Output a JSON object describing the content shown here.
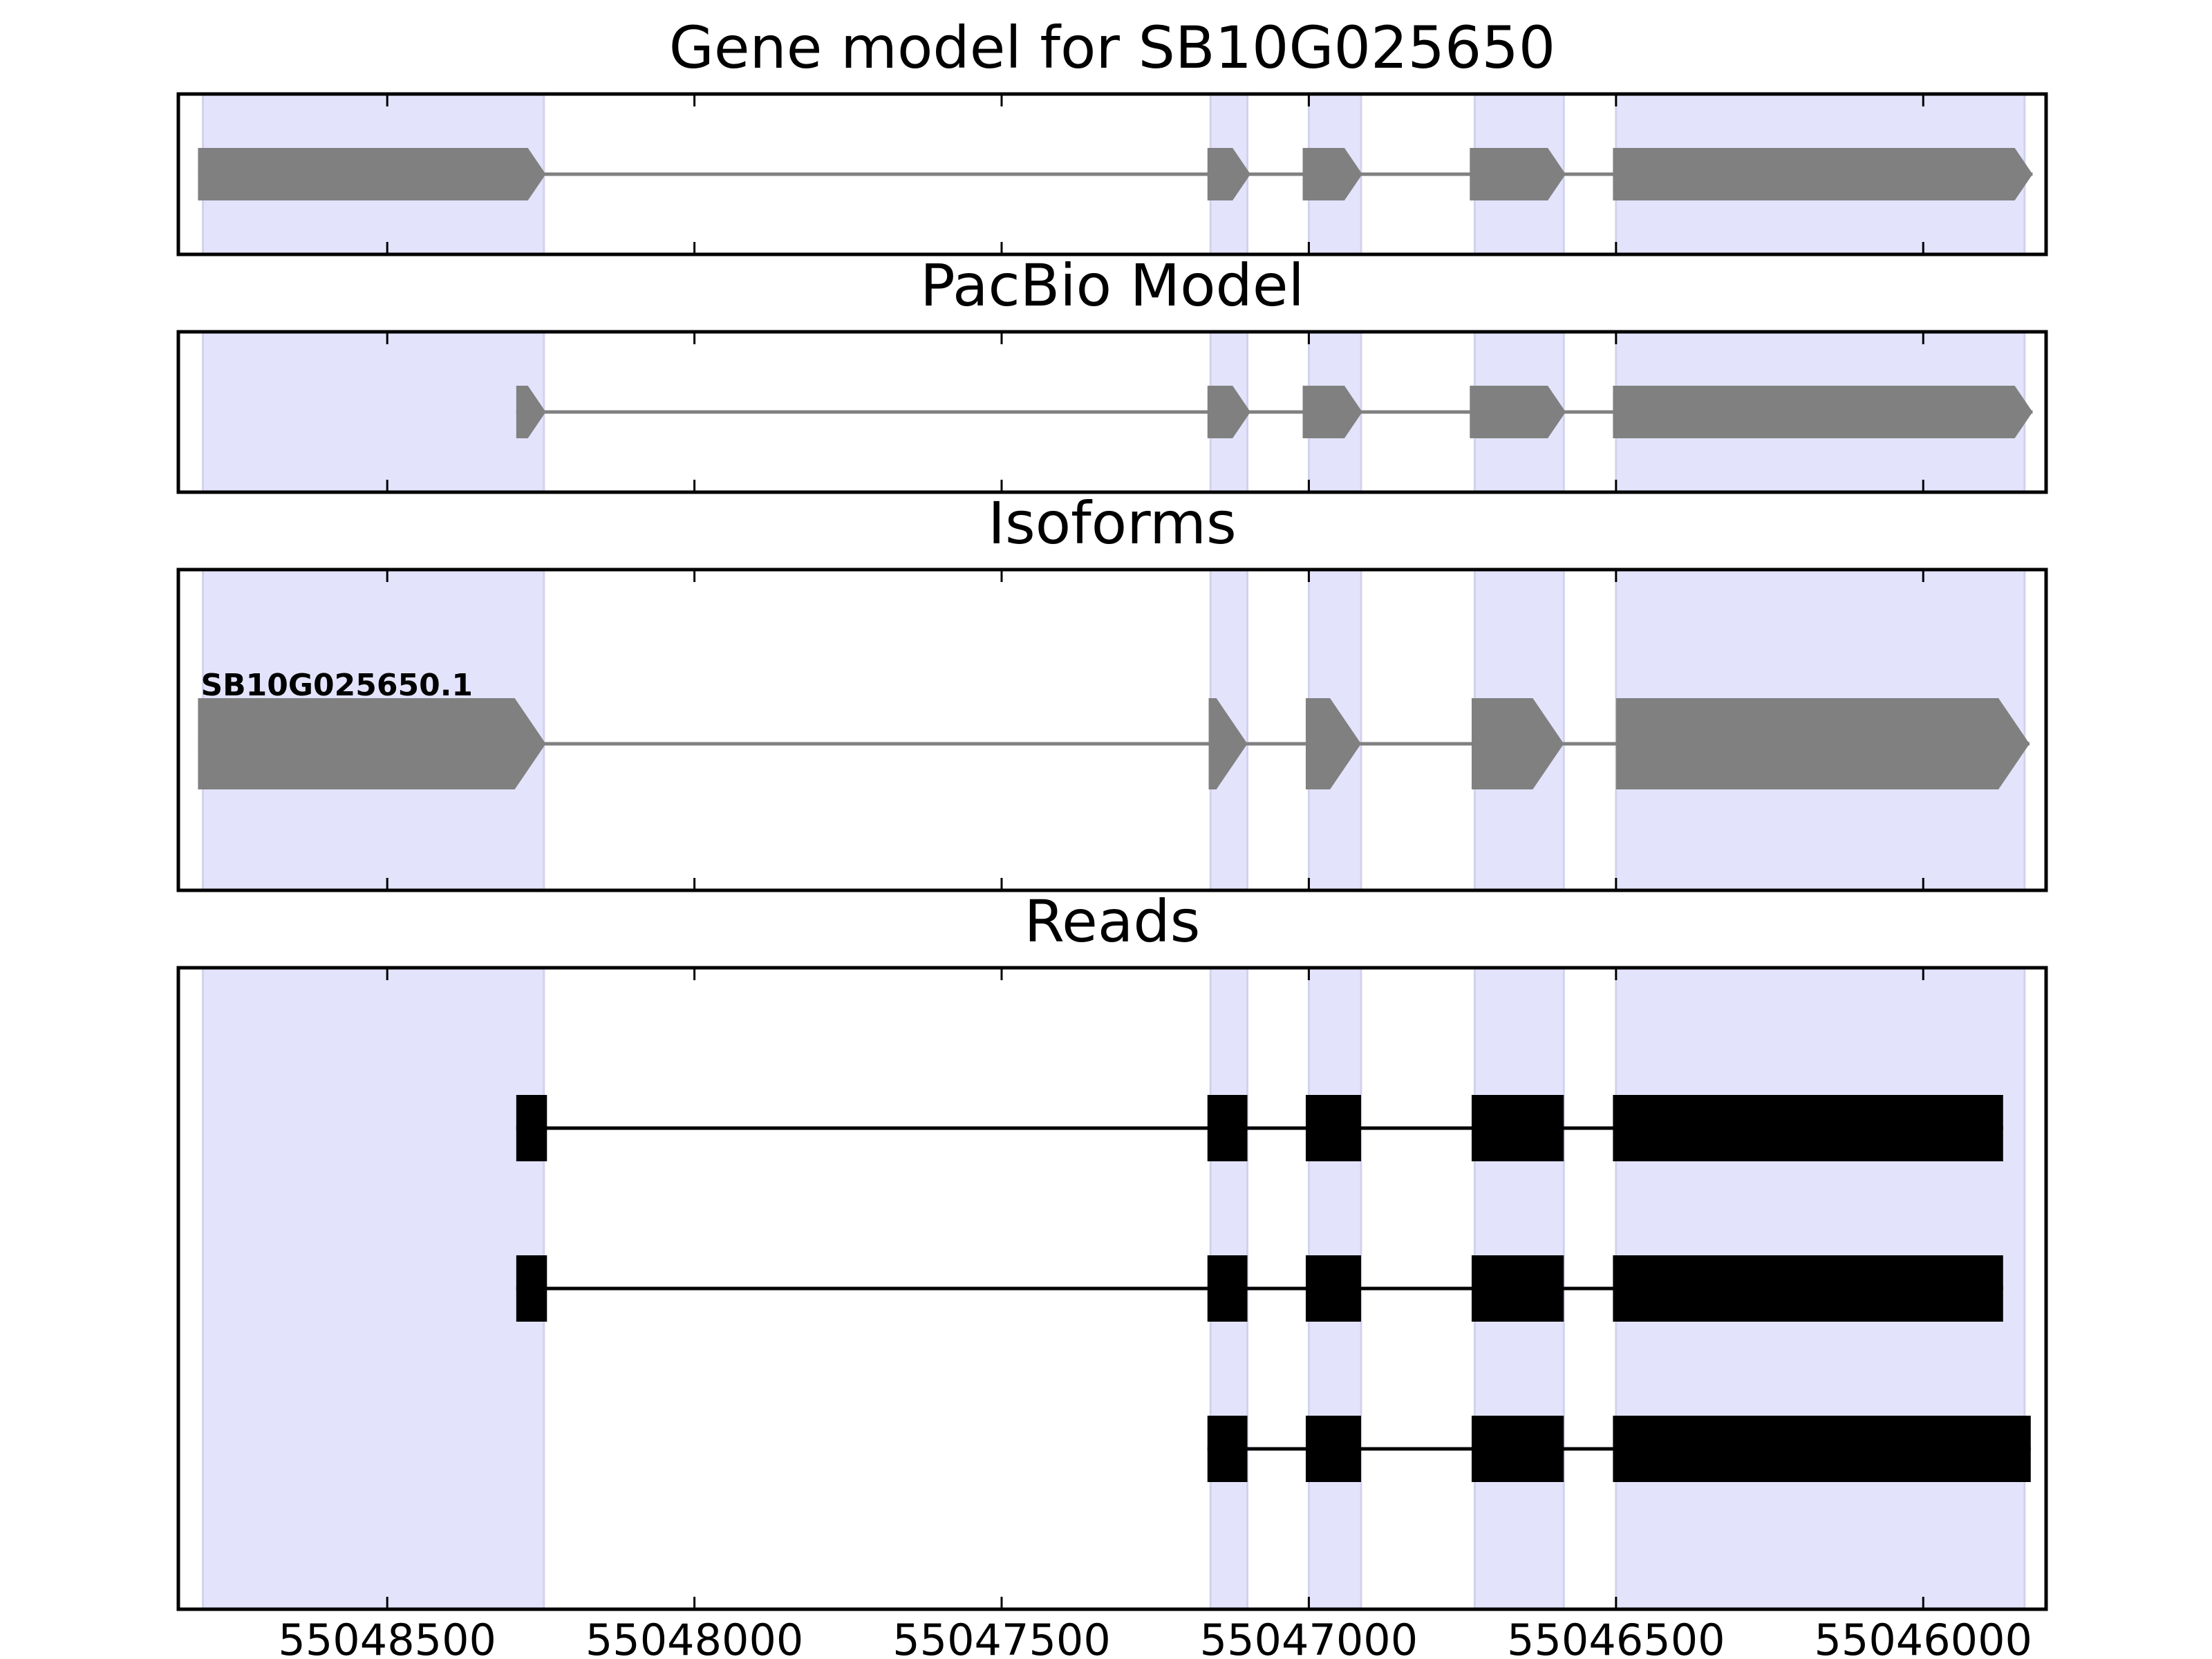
{
  "chart_data": {
    "type": "gene-model",
    "x_axis": {
      "reversed": true,
      "range": [
        55048840,
        55045800
      ],
      "ticks": [
        55048500,
        55048000,
        55047500,
        55047000,
        55046500,
        55046000
      ],
      "tick_labels": [
        "55048500",
        "55048000",
        "55047500",
        "55047000",
        "55046500",
        "55046000"
      ]
    },
    "highlight_regions": [
      [
        55048800,
        55048245
      ],
      [
        55047160,
        55047100
      ],
      [
        55047000,
        55046915
      ],
      [
        55046730,
        55046585
      ],
      [
        55046500,
        55045835
      ]
    ],
    "panels": [
      {
        "id": "gene",
        "title": "Gene model for SB10G025650",
        "color": "#808080",
        "tracks": [
          {
            "label": "",
            "exons": [
              [
                55048808,
                55048242
              ],
              [
                55047165,
                55047095
              ],
              [
                55047010,
                55046913
              ],
              [
                55046738,
                55046582
              ],
              [
                55046505,
                55045822
              ]
            ]
          }
        ]
      },
      {
        "id": "pacbio",
        "title": "PacBio Model",
        "color": "#808080",
        "tracks": [
          {
            "label": "",
            "exons": [
              [
                55048290,
                55048242
              ],
              [
                55047165,
                55047095
              ],
              [
                55047010,
                55046913
              ],
              [
                55046738,
                55046582
              ],
              [
                55046505,
                55045822
              ]
            ]
          }
        ]
      },
      {
        "id": "isoforms",
        "title": "Isoforms",
        "color": "#808080",
        "tracks": [
          {
            "label": "SB10G025650.1",
            "exons": [
              [
                55048808,
                55048242
              ],
              [
                55047163,
                55047100
              ],
              [
                55047005,
                55046915
              ],
              [
                55046735,
                55046585
              ],
              [
                55046500,
                55045827
              ]
            ]
          }
        ]
      },
      {
        "id": "reads",
        "title": "Reads",
        "color": "#000000",
        "tracks": [
          {
            "label": "",
            "exons": [
              [
                55048290,
                55048240
              ],
              [
                55047165,
                55047100
              ],
              [
                55047005,
                55046915
              ],
              [
                55046735,
                55046585
              ],
              [
                55046505,
                55045870
              ]
            ]
          },
          {
            "label": "",
            "exons": [
              [
                55048290,
                55048240
              ],
              [
                55047165,
                55047100
              ],
              [
                55047005,
                55046915
              ],
              [
                55046735,
                55046585
              ],
              [
                55046505,
                55045870
              ]
            ]
          },
          {
            "label": "",
            "exons": [
              [
                55047165,
                55047100
              ],
              [
                55047005,
                55046915
              ],
              [
                55046735,
                55046585
              ],
              [
                55046505,
                55045825
              ]
            ]
          }
        ]
      }
    ]
  }
}
